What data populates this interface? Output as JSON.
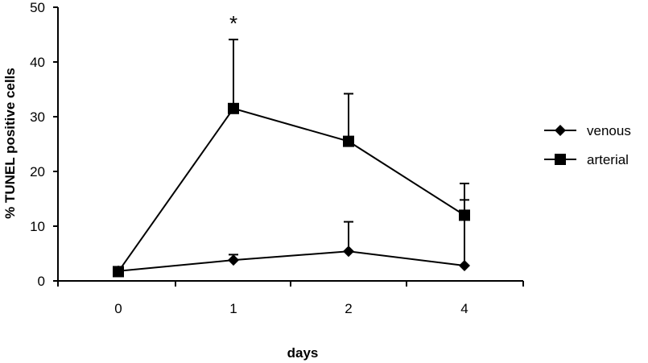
{
  "chart_data": {
    "type": "line",
    "title": "",
    "xlabel": "days",
    "ylabel": "% TUNEL positive cells",
    "categories": [
      "0",
      "1",
      "2",
      "4"
    ],
    "ylim": [
      0,
      50
    ],
    "yticks": [
      "0",
      "10",
      "20",
      "30",
      "40",
      "50"
    ],
    "grid": false,
    "legend_position": "right",
    "series": [
      {
        "name": "venous",
        "marker": "diamond",
        "color": "#000000",
        "values": [
          1.8,
          3.8,
          5.4,
          2.8
        ],
        "error_upper": [
          0,
          1.0,
          5.4,
          12.0
        ]
      },
      {
        "name": "arterial",
        "marker": "square",
        "color": "#000000",
        "values": [
          1.7,
          31.5,
          25.5,
          12.0
        ],
        "error_upper": [
          0,
          12.6,
          8.7,
          5.8
        ]
      }
    ],
    "annotations": [
      {
        "text": "*",
        "category": "1",
        "y": 47.5
      }
    ]
  }
}
